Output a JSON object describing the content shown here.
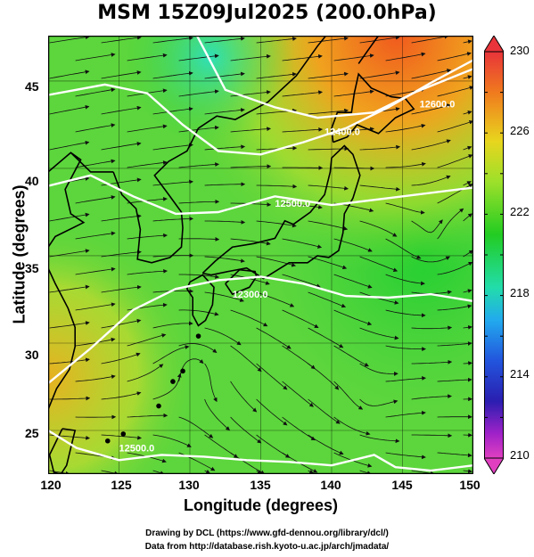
{
  "title": "MSM 15Z09Jul2025 (200.0hPa)",
  "xlabel": "Longitude (degrees)",
  "ylabel": "Latitude  (degrees)",
  "credits": {
    "line1": "Drawing by DCL (https://www.gfd-dennou.org/library/dcl/)",
    "line2": "Data from http://database.rish.kyoto-u.ac.jp/arch/jmadata/"
  },
  "map": {
    "lon_range": [
      120,
      150
    ],
    "lat_range": [
      22.5,
      47.6
    ],
    "x_ticks": [
      "120",
      "125",
      "130",
      "135",
      "140",
      "145",
      "150"
    ],
    "y_ticks": [
      "25",
      "30",
      "35",
      "40",
      "45"
    ],
    "contour_labels": [
      "12600.0",
      "12400.0",
      "12500.0",
      "12300.0",
      "12500.0"
    ],
    "colorbar_ticks": [
      "230",
      "226",
      "222",
      "218",
      "214",
      "210"
    ],
    "colorbar_range": [
      210,
      230
    ],
    "colors": {
      "land_outline": "#000000",
      "contour": "#ffffff",
      "background_field": "#3fd13f",
      "warm": "#f07a1e",
      "cool": "#33d9b0"
    }
  }
}
